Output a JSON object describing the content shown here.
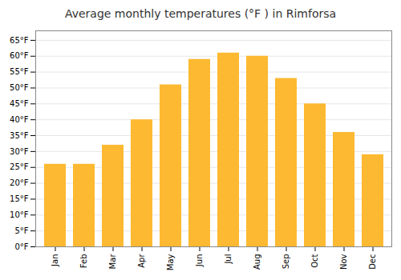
{
  "chart_data": {
    "type": "bar",
    "title": "Average monthly temperatures (°F ) in Rimforsa",
    "categories": [
      "Jan",
      "Feb",
      "Mar",
      "Apr",
      "May",
      "Jun",
      "Jul",
      "Aug",
      "Sep",
      "Oct",
      "Nov",
      "Dec"
    ],
    "values": [
      26,
      26,
      32,
      40,
      51,
      59,
      61,
      60,
      53,
      45,
      36,
      29
    ],
    "color": "#FDB931",
    "ylim": [
      0,
      68
    ],
    "yticks": [
      {
        "value": 0,
        "label": "0°F"
      },
      {
        "value": 5,
        "label": "5°F"
      },
      {
        "value": 10,
        "label": "10°F"
      },
      {
        "value": 15,
        "label": "15°F"
      },
      {
        "value": 20,
        "label": "20°F"
      },
      {
        "value": 25,
        "label": "25°F"
      },
      {
        "value": 30,
        "label": "30°F"
      },
      {
        "value": 35,
        "label": "35°F"
      },
      {
        "value": 40,
        "label": "40°F"
      },
      {
        "value": 45,
        "label": "45°F"
      },
      {
        "value": 50,
        "label": "50°F"
      },
      {
        "value": 55,
        "label": "55°F"
      },
      {
        "value": 60,
        "label": "60°F"
      },
      {
        "value": 65,
        "label": "65°F"
      }
    ],
    "grid": true
  }
}
